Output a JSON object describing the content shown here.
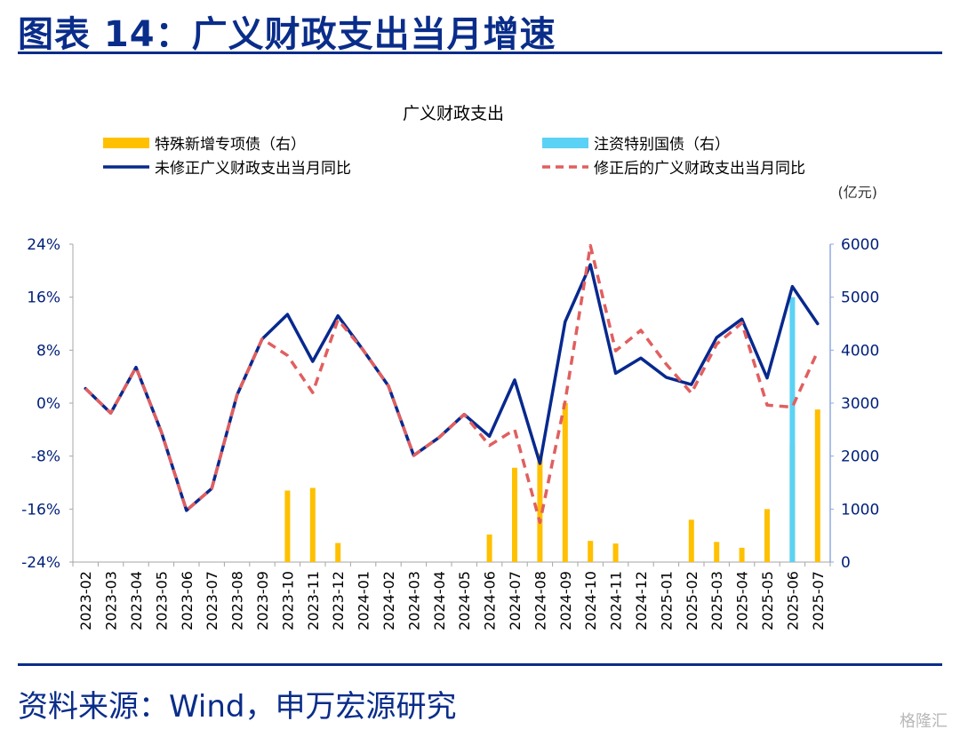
{
  "page": {
    "title": "图表 14：广义财政支出当月增速",
    "source": "资料来源：Wind，申万宏源研究",
    "watermark": "格隆汇"
  },
  "colors": {
    "title_blue": "#0a2d8a",
    "special_bond": "#ffc000",
    "special_treasury": "#5bd2f5",
    "unadjusted_line": "#07298e",
    "adjusted_line": "#e15f5f",
    "left_axis_text": "#001f7a",
    "right_axis_line": "#8fa8e0"
  },
  "chart_data": {
    "type": "bar+line",
    "title": "广义财政支出",
    "right_unit": "(亿元)",
    "categories": [
      "2023-02",
      "2023-03",
      "2023-04",
      "2023-05",
      "2023-06",
      "2023-07",
      "2023-08",
      "2023-09",
      "2023-10",
      "2023-11",
      "2023-12",
      "2024-01",
      "2024-02",
      "2024-03",
      "2024-04",
      "2024-05",
      "2024-06",
      "2024-07",
      "2024-08",
      "2024-09",
      "2024-10",
      "2024-11",
      "2024-12",
      "2025-01",
      "2025-02",
      "2025-03",
      "2025-04",
      "2025-05",
      "2025-06",
      "2025-07"
    ],
    "y_left": {
      "min": -24,
      "max": 24,
      "ticks": [
        24,
        16,
        8,
        0,
        -8,
        -16,
        -24
      ],
      "tick_labels": [
        "24%",
        "16%",
        "8%",
        "0%",
        "-8%",
        "-16%",
        "-24%"
      ]
    },
    "y_right": {
      "min": 0,
      "max": 6000,
      "ticks": [
        6000,
        5000,
        4000,
        3000,
        2000,
        1000,
        0
      ],
      "tick_labels": [
        "6000",
        "5000",
        "4000",
        "3000",
        "2000",
        "1000",
        "0"
      ]
    },
    "legend": {
      "placement": "top"
    },
    "series": [
      {
        "name": "特殊新增专项债（右）",
        "kind": "bar",
        "axis": "right",
        "color_key": "special_bond",
        "values": [
          0,
          0,
          0,
          0,
          0,
          0,
          0,
          0,
          1350,
          1400,
          360,
          0,
          0,
          0,
          0,
          0,
          520,
          1780,
          2050,
          3000,
          400,
          350,
          0,
          0,
          800,
          380,
          270,
          1000,
          2230,
          2880
        ]
      },
      {
        "name": "注资特别国债（右）",
        "kind": "bar",
        "axis": "right",
        "color_key": "special_treasury",
        "values": [
          0,
          0,
          0,
          0,
          0,
          0,
          0,
          0,
          0,
          0,
          0,
          0,
          0,
          0,
          0,
          0,
          0,
          0,
          0,
          0,
          0,
          0,
          0,
          0,
          0,
          0,
          0,
          0,
          5000,
          0
        ]
      },
      {
        "name": "未修正广义财政支出当月同比",
        "kind": "line",
        "axis": "left",
        "color_key": "unadjusted_line",
        "dash": false,
        "values": [
          2.2,
          -1.5,
          5.4,
          -4.3,
          -16.2,
          -12.9,
          1.2,
          9.7,
          13.4,
          6.3,
          13.2,
          8.0,
          2.6,
          -7.9,
          -5.2,
          -1.7,
          -5.0,
          3.5,
          -9.1,
          12.3,
          20.9,
          4.5,
          6.8,
          3.9,
          2.8,
          9.9,
          12.7,
          3.8,
          17.6,
          12.0
        ]
      },
      {
        "name": "修正后的广义财政支出当月同比",
        "kind": "line",
        "axis": "left",
        "color_key": "adjusted_line",
        "dash": true,
        "values": [
          2.2,
          -1.5,
          5.4,
          -4.3,
          -16.2,
          -12.9,
          1.2,
          9.7,
          7.2,
          1.6,
          12.6,
          8.0,
          2.6,
          -7.9,
          -5.2,
          -1.7,
          -6.4,
          -4.0,
          -18.0,
          0.3,
          23.8,
          7.9,
          11.0,
          5.9,
          1.5,
          8.9,
          12.1,
          -0.3,
          -0.6,
          7.8
        ]
      }
    ]
  }
}
